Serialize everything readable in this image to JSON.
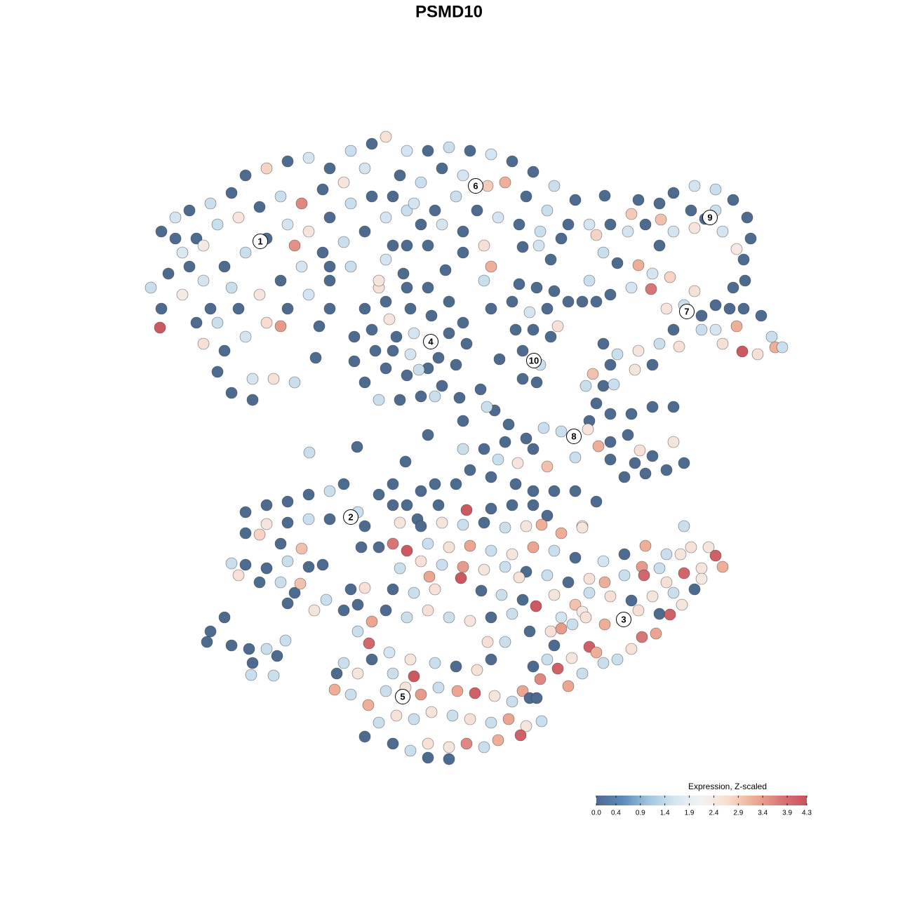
{
  "chart_data": {
    "type": "scatter",
    "title": "PSMD10",
    "xlim": [
      0,
      1280
    ],
    "ylim": [
      1280,
      0
    ],
    "x": [
      230,
      250,
      270,
      300,
      330,
      350,
      380,
      410,
      440,
      470,
      500,
      530,
      550,
      520,
      490,
      460,
      430,
      400,
      370,
      340,
      310,
      280,
      260,
      240,
      215,
      230,
      228,
      260,
      290,
      320,
      350,
      380,
      410,
      440,
      470,
      500,
      530,
      550,
      520,
      490,
      460,
      430,
      400,
      370,
      340,
      310,
      290,
      320,
      350,
      380,
      410,
      440,
      470,
      500,
      420,
      300,
      310,
      330,
      360,
      390,
      420,
      360,
      280,
      330,
      270,
      290,
      250,
      560,
      580,
      560,
      550,
      540,
      470,
      455,
      400,
      450,
      470,
      580,
      610,
      640,
      670,
      700,
      730,
      760,
      790,
      820,
      840,
      810,
      780,
      750,
      720,
      695,
      660,
      630,
      600,
      570,
      590,
      620,
      650,
      680,
      710,
      740,
      770,
      800,
      690,
      700,
      690,
      660,
      630,
      600,
      635,
      660,
      580,
      610,
      745,
      768,
      785,
      850,
      520,
      550,
      580,
      610,
      640,
      660,
      665,
      650,
      630,
      600,
      570,
      540,
      520,
      505,
      505,
      530,
      555,
      585,
      615,
      640,
      612,
      585,
      560,
      535,
      550,
      580,
      610,
      597,
      625,
      565,
      590,
      620,
      540,
      575,
      740,
      765,
      790,
      810,
      780,
      755,
      735,
      760,
      785,
      795,
      745,
      770,
      765,
      745,
      712,
      700,
      730,
      830,
      870,
      900,
      910,
      940,
      960,
      990,
      1020,
      1045,
      1065,
      1070,
      1060,
      1062,
      1050,
      1030,
      990,
      960,
      942,
      920,
      895,
      940,
      1020,
      862,
      985,
      1005,
      1045,
      860,
      880,
      910,
      930,
      955,
      990,
      975,
      950,
      928,
      900,
      870,
      850,
      840,
      1000,
      1020,
      1050,
      1060,
      1085,
      1100,
      1105,
      1080,
      1058,
      1030,
      1000,
      960,
      940,
      968,
      1040,
      1115,
      1020,
      860,
      880,
      910,
      930,
      905,
      870,
      845,
      835,
      860,
      875,
      850,
      870,
      900,
      930,
      960,
      840,
      838,
      820,
      800,
      775,
      750,
      720,
      690,
      710,
      738,
      760,
      780,
      820,
      853,
      870,
      895,
      912,
      930,
      960,
      975,
      950,
      920,
      890,
      870,
      905,
      660,
      670,
      700,
      735,
      760,
      790,
      820,
      850,
      780,
      730,
      650,
      620,
      600,
      580,
      560,
      595,
      625,
      665,
      700,
      760,
      830,
      705,
      685,
      660,
      725,
      610,
      578,
      509,
      441,
      655,
      694,
      350,
      380,
      410,
      440,
      470,
      490,
      510,
      499,
      470,
      440,
      410,
      380,
      350,
      370,
      400,
      430,
      410,
      380,
      350,
      330,
      340,
      370,
      400,
      420,
      440,
      460,
      428,
      410,
      448,
      465,
      520,
      540,
      560,
      515,
      540,
      300,
      295,
      320,
      330,
      355,
      380,
      360,
      358,
      390,
      407,
      395,
      500,
      510,
      570,
      600,
      630,
      660,
      690,
      720,
      750,
      772,
      800,
      830,
      560,
      580,
      610,
      640,
      670,
      700,
      730,
      760,
      790,
      820,
      570,
      600,
      630,
      660,
      690,
      720,
      750,
      780,
      810,
      840,
      560,
      590,
      620,
      657,
      686,
      715,
      745,
      764,
      790,
      820,
      550,
      580,
      610,
      640,
      670,
      700,
      730,
      800,
      830,
      612,
      740,
      520,
      530,
      510,
      490,
      720,
      695,
      755,
      785,
      860,
      890,
      920,
      950,
      985,
      1010,
      1020,
      1030,
      1000,
      975,
      950,
      915,
      890,
      862,
      840,
      870,
      900,
      930,
      960,
      990,
      1000,
      862,
      890,
      910,
      940,
      955,
      972,
      835,
      816,
      800,
      915,
      935,
      900,
      880,
      840,
      815,
      795,
      780,
      770,
      810,
      850,
      860,
      830,
      760,
      790,
      918,
      940,
      970,
      975,
      490,
      510,
      530,
      555,
      585,
      620,
      650,
      680,
      700,
      500,
      525,
      550,
      578,
      600,
      625,
      652,
      677,
      705,
      730,
      745,
      540,
      565,
      590,
      615,
      645,
      670,
      700,
      725,
      750,
      772,
      560,
      585,
      610,
      640,
      665,
      690,
      710,
      742,
      590,
      560,
      477,
      526,
      610,
      640,
      520,
      480,
      755,
      765
    ],
    "y": [
      330,
      310,
      300,
      290,
      275,
      250,
      240,
      230,
      225,
      240,
      215,
      205,
      195,
      240,
      260,
      270,
      290,
      280,
      295,
      310,
      320,
      340,
      360,
      390,
      410,
      440,
      467,
      420,
      400,
      380,
      360,
      340,
      320,
      330,
      310,
      290,
      280,
      310,
      330,
      345,
      360,
      380,
      400,
      420,
      440,
      460,
      490,
      500,
      480,
      460,
      440,
      420,
      400,
      380,
      350,
      440,
      530,
      560,
      570,
      540,
      545,
      540,
      460,
      410,
      380,
      350,
      340,
      280,
      300,
      350,
      370,
      410,
      440,
      465,
      465,
      510,
      380,
      215,
      215,
      210,
      215,
      220,
      230,
      245,
      265,
      285,
      320,
      320,
      300,
      280,
      260,
      265,
      250,
      240,
      260,
      250,
      290,
      300,
      280,
      300,
      310,
      320,
      330,
      340,
      350,
      380,
      400,
      330,
      320,
      320,
      385,
      360,
      350,
      350,
      352,
      350,
      370,
      335,
      440,
      430,
      410,
      410,
      430,
      460,
      490,
      520,
      550,
      565,
      570,
      570,
      545,
      515,
      480,
      470,
      455,
      440,
      450,
      475,
      487,
      505,
      500,
      500,
      525,
      535,
      525,
      527,
      510,
      480,
      475,
      565,
      400,
      390,
      405,
      410,
      415,
      430,
      440,
      445,
      470,
      470,
      480,
      465,
      500,
      520,
      545,
      540,
      512,
      440,
      430,
      430,
      320,
      305,
      285,
      290,
      275,
      265,
      270,
      285,
      310,
      340,
      370,
      400,
      355,
      330,
      325,
      330,
      313,
      320,
      330,
      350,
      300,
      279,
      300,
      312,
      410,
      360,
      375,
      378,
      390,
      395,
      415,
      435,
      440,
      412,
      410,
      420,
      430,
      400,
      450,
      470,
      465,
      440,
      450,
      480,
      495,
      505,
      501,
      490,
      470,
      470,
      490,
      494,
      440,
      495,
      435,
      490,
      505,
      500,
      520,
      527,
      520,
      533,
      550,
      550,
      548,
      575,
      590,
      590,
      580,
      580,
      600,
      612,
      620,
      615,
      610,
      625,
      630,
      640,
      655,
      660,
      640,
      665,
      652,
      636,
      630,
      620,
      642,
      650,
      630,
      660,
      670,
      675,
      680,
      655,
      660,
      640,
      670,
      680,
      690,
      700,
      700,
      700,
      715,
      735,
      720,
      690,
      690,
      700,
      720,
      690,
      740,
      720,
      727,
      725,
      720,
      750,
      585,
      555,
      600,
      605,
      620,
      658,
      637,
      645,
      567,
      580,
      730,
      720,
      715,
      705,
      700,
      690,
      730,
      737,
      740,
      740,
      745,
      747,
      760,
      762,
      775,
      782,
      800,
      810,
      805,
      803,
      820,
      830,
      830,
      845,
      808,
      805,
      832,
      860,
      870,
      855,
      750,
      705,
      720,
      780,
      780,
      900,
      915,
      880,
      920,
      925,
      925,
      945,
      962,
      963,
      913,
      935,
      840,
      862,
      745,
      750,
      745,
      748,
      745,
      752,
      750,
      748,
      760,
      752,
      775,
      785,
      775,
      780,
      778,
      785,
      790,
      780,
      785,
      795,
      810,
      800,
      805,
      808,
      812,
      808,
      815,
      820,
      830,
      825,
      840,
      845,
      840,
      824,
      842,
      848,
      855,
      864,
      848,
      862,
      870,
      880,
      870,
      880,
      885,
      880,
      875,
      880,
      872,
      822,
      823,
      838,
      886,
      900,
      870,
      915,
      915,
      900,
      900,
      800,
      790,
      778,
      790,
      780,
      780,
      792,
      808,
      810,
      817,
      830,
      808,
      820,
      830,
      845,
      850,
      856,
      850,
      845,
      840,
      825,
      890,
      883,
      870,
      875,
      876,
      862,
      880,
      890,
      896,
      908,
      903,
      925,
      940,
      922,
      938,
      953,
      940,
      968,
      978,
      930,
      945,
      960,
      950,
      920,
      820,
      810,
      790,
      750,
      945,
      960,
      940,
      930,
      940,
      945,
      950,
      955,
      940,
      990,
      1005,
      985,
      980,
      990,
      980,
      985,
      988,
      992,
      1000,
      985,
      1030,
      1020,
      1025,
      1015,
      1020,
      1025,
      1030,
      1025,
      1035,
      1028,
      1060,
      1070,
      1060,
      1065,
      1060,
      1065,
      1055,
      1048,
      964,
      960,
      983,
      917,
      1080,
      1082,
      1050,
      960,
      995,
      995
    ],
    "values": [
      0,
      1.6,
      0,
      1.5,
      0,
      0,
      2.8,
      0,
      1.6,
      0,
      1.5,
      0,
      2.6,
      1.6,
      2.5,
      0,
      3.6,
      1.5,
      0,
      2.5,
      1.5,
      0,
      1.7,
      0,
      1.5,
      0,
      4.2,
      2.4,
      1.6,
      0,
      1.5,
      0,
      1.6,
      2.5,
      0,
      1.5,
      0,
      1.6,
      0,
      1.5,
      0,
      1.6,
      0,
      2.5,
      0,
      1.5,
      2.6,
      0,
      1.6,
      2.7,
      0,
      1.6,
      0,
      1.5,
      3.5,
      0,
      0,
      0,
      0,
      2.6,
      1.5,
      1.6,
      0,
      1.5,
      0,
      2.4,
      0,
      0,
      1.5,
      0,
      1.6,
      2.6,
      0,
      0,
      3.4,
      0,
      0,
      1.6,
      0,
      1.5,
      0,
      1.6,
      0,
      0,
      1.5,
      0,
      1.6,
      0,
      1.5,
      0,
      3.2,
      2.9,
      1.6,
      0,
      1.5,
      0,
      1.6,
      0,
      1.5,
      0,
      1.6,
      0,
      1.5,
      0,
      2.6,
      3.2,
      1.5,
      0,
      1.6,
      0,
      0,
      0,
      0,
      0,
      0,
      1.6,
      0,
      2.8,
      0,
      0,
      0,
      0,
      0,
      0,
      0,
      0,
      0,
      0,
      0,
      1.5,
      0,
      0,
      0,
      0,
      2.5,
      0,
      0,
      0,
      1.5,
      1.6,
      0,
      0,
      0,
      0,
      0,
      1.5,
      0,
      0,
      1.6,
      1.5,
      2.5,
      0,
      0,
      0,
      0,
      0,
      0,
      1.6,
      0,
      0,
      0,
      2.6,
      0,
      1.5,
      0,
      0,
      0,
      0,
      0,
      0,
      0,
      2.9,
      0,
      0,
      0,
      1.6,
      1.5,
      0,
      0,
      0,
      0,
      0,
      2.4,
      1.6,
      2.5,
      1.6,
      3.0,
      0,
      1.6,
      0,
      1.5,
      0,
      0,
      0,
      0,
      1.5,
      0,
      3.2,
      1.6,
      2.8,
      2.6,
      1.5,
      2.5,
      3.8,
      1.6,
      0,
      0,
      1.5,
      0,
      1.6,
      3.2,
      0,
      0,
      1.5,
      3.2,
      2.6,
      4.2,
      2.6,
      1.5,
      0,
      1.5,
      2.6,
      0,
      1.5,
      0,
      0,
      1.5,
      2.5,
      0,
      2.5,
      0,
      3.0,
      1.5,
      0,
      1.5,
      0,
      0,
      0,
      0,
      0,
      0,
      2.5,
      0,
      1.5,
      1.5,
      0,
      0,
      0,
      1.5,
      2.5,
      0,
      3.0,
      1.5,
      3.2,
      0,
      0,
      2.6,
      0,
      2.5,
      0,
      0,
      0,
      0,
      0,
      0,
      1.5,
      0,
      0,
      0,
      0,
      0,
      0,
      0,
      0,
      0,
      0,
      0,
      0,
      0,
      0,
      0,
      0,
      4.2,
      0,
      0,
      2.6,
      0,
      0,
      0,
      0,
      0,
      0,
      0,
      1.5,
      0,
      1.5,
      0,
      0,
      0,
      0,
      1.5,
      0,
      1.5,
      1.5,
      0,
      1.5,
      0,
      2.5,
      0,
      2.8,
      0,
      3.0,
      1.5,
      0,
      0,
      1.5,
      2.6,
      0,
      1.5,
      0,
      0,
      0,
      3.0,
      0,
      2.5,
      1.5,
      0,
      0,
      0,
      0,
      0,
      0,
      0,
      0,
      0,
      0,
      1.5,
      0,
      1.5,
      1.5,
      1.5,
      0,
      0,
      0,
      2.5,
      0,
      2.5,
      1.5,
      0,
      1.5,
      2.5,
      3.2,
      3.2,
      2.5,
      3.8,
      4.2,
      1.5,
      2.6,
      3.3,
      1.5,
      2.5,
      3.3,
      1.5,
      0,
      1.5,
      2.6,
      1.5,
      3.4,
      2.5,
      1.5,
      0,
      1.5,
      0,
      2.6,
      0,
      1.5,
      2.6,
      4.2,
      0,
      1.5,
      0,
      4.2,
      2.5,
      3.0,
      0,
      1.5,
      2.6,
      1.5,
      2.5,
      0,
      1.5,
      1.6,
      2.4,
      3.3,
      2.6,
      2.6,
      3.3,
      1.5,
      0,
      1.5,
      2.6,
      0,
      2.6,
      1.6,
      0,
      3.2,
      1.5,
      2.6,
      2.5,
      4.1,
      3.2,
      2.5,
      4.0,
      2.6,
      3.4,
      1.5,
      3.2,
      1.5,
      2.6,
      0,
      2.5,
      1.5,
      0,
      2.4,
      3.2,
      1.5,
      2.6,
      0,
      4.1,
      2.5,
      2.6,
      1.5,
      3.4,
      3.8,
      3.3,
      2.6,
      1.5,
      4.1,
      2.5,
      4.1,
      1.5,
      3.6,
      3.3,
      3.2,
      1.5,
      1.5,
      0,
      0,
      4.0,
      1.5,
      2.5,
      1.5,
      1.5,
      2.5,
      0,
      1.6,
      2.5,
      1.5,
      0,
      2.6,
      0,
      1.5,
      3.2,
      1.5,
      2.5,
      3.4,
      1.5,
      3.3,
      4.1,
      2.5,
      1.5,
      3.3,
      1.5,
      2.6,
      1.5,
      2.5,
      1.5,
      2.6,
      1.5,
      3.3,
      2.5,
      1.5,
      0,
      1.5,
      2.6,
      2.5,
      3.6,
      1.5,
      3.2,
      4.1,
      4.2,
      1.5,
      3.2,
      4.0,
      0,
      0,
      0,
      0,
      0,
      0
    ],
    "cluster_labels": {
      "labels": [
        "1",
        "2",
        "3",
        "4",
        "5",
        "6",
        "7",
        "8",
        "9",
        "10"
      ],
      "x": [
        371,
        500,
        889,
        614,
        574,
        678,
        979,
        818,
        1012,
        761
      ],
      "y": [
        344,
        737,
        883,
        487,
        993,
        265,
        444,
        622,
        310,
        514
      ]
    },
    "colorbar": {
      "title": "Expression, Z-scaled",
      "clim": [
        0,
        4.3
      ],
      "colors": [
        "#4d6a8f",
        "#5b8bbd",
        "#a2c6e0",
        "#d5e6f1",
        "#f3f3f3",
        "#f8ddd0",
        "#eeac94",
        "#d97879",
        "#c9525a"
      ],
      "ticks": [
        {
          "value": 0,
          "label": "0.0"
        },
        0.4,
        0.9,
        1.4,
        1.9,
        2.4,
        2.9,
        3.4,
        3.9,
        4.3
      ]
    }
  }
}
